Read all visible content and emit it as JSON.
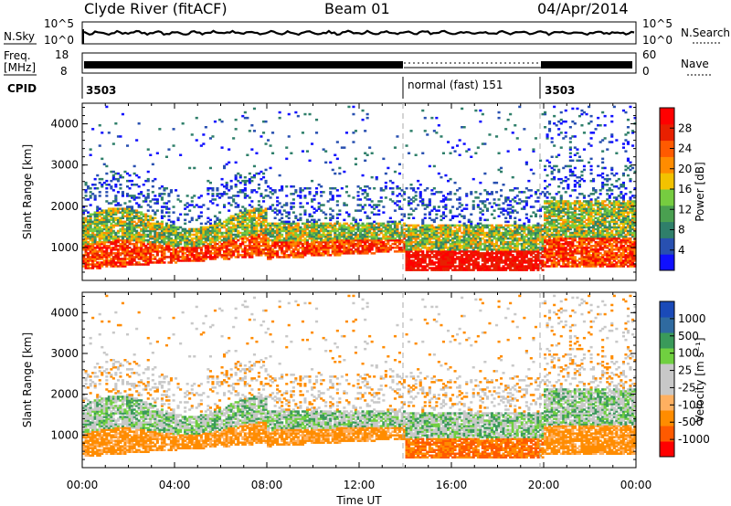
{
  "header": {
    "station": "Clyde River (fitACF)",
    "beam": "Beam 01",
    "date": "04/Apr/2014"
  },
  "top_panel": {
    "left_label": "N.Sky",
    "left_ticks": [
      "10^5",
      "10^0"
    ],
    "right_ticks": [
      "10^5",
      "10^0"
    ],
    "right_label": "N.Search"
  },
  "freq_panel": {
    "left_label_1": "Freq.",
    "left_label_2": "[MHz]",
    "left_ticks": [
      "18",
      "8"
    ],
    "right_ticks": [
      "60",
      "0"
    ],
    "right_label": "Nave"
  },
  "cpid_panel": {
    "label": "CPID",
    "segments": [
      {
        "start": "00:00",
        "end": "14:00",
        "text": "3503"
      },
      {
        "start": "14:00",
        "end": "20:00",
        "text": "normal (fast) 151"
      },
      {
        "start": "20:00",
        "end": "24:00",
        "text": "3503"
      }
    ]
  },
  "chart_data": [
    {
      "type": "heatmap",
      "title": "",
      "xlabel": "Time UT",
      "ylabel": "Slant Range [km]",
      "x_ticks": [
        "00:00",
        "04:00",
        "08:00",
        "12:00",
        "16:00",
        "20:00",
        "00:00"
      ],
      "y_ticks": [
        "1000",
        "2000",
        "3000",
        "4000"
      ],
      "ylim": [
        200,
        4500
      ],
      "xlim_hours": [
        0,
        24
      ],
      "colorbar": {
        "label": "Power [dB]",
        "ticks": [
          "28",
          "24",
          "20",
          "16",
          "12",
          "8",
          "4"
        ],
        "range": [
          0,
          30
        ],
        "colors": [
          "#1010ff",
          "#2850b0",
          "#2f7f6a",
          "#4aa050",
          "#76cc40",
          "#f2c200",
          "#ff8c00",
          "#ff5a00",
          "#e82000",
          "#ff0000"
        ]
      }
    },
    {
      "type": "heatmap",
      "title": "",
      "xlabel": "Time UT",
      "ylabel": "Slant Range [km]",
      "x_ticks": [
        "00:00",
        "04:00",
        "08:00",
        "12:00",
        "16:00",
        "20:00",
        "00:00"
      ],
      "y_ticks": [
        "1000",
        "2000",
        "3000",
        "4000"
      ],
      "ylim": [
        200,
        4500
      ],
      "xlim_hours": [
        0,
        24
      ],
      "colorbar": {
        "label": "Velocity [m s⁻¹]",
        "ticks": [
          "1000",
          "500",
          "100",
          "25",
          "-25",
          "-100",
          "-500",
          "-1000"
        ],
        "range": [
          -1000,
          1000
        ],
        "colors": [
          "#ff0000",
          "#ff5a00",
          "#ff8c00",
          "#ffb060",
          "#c8c8c8",
          "#c8c8c8",
          "#70d040",
          "#3a9a5a",
          "#2f6aa0",
          "#1a4ab8"
        ]
      }
    }
  ]
}
